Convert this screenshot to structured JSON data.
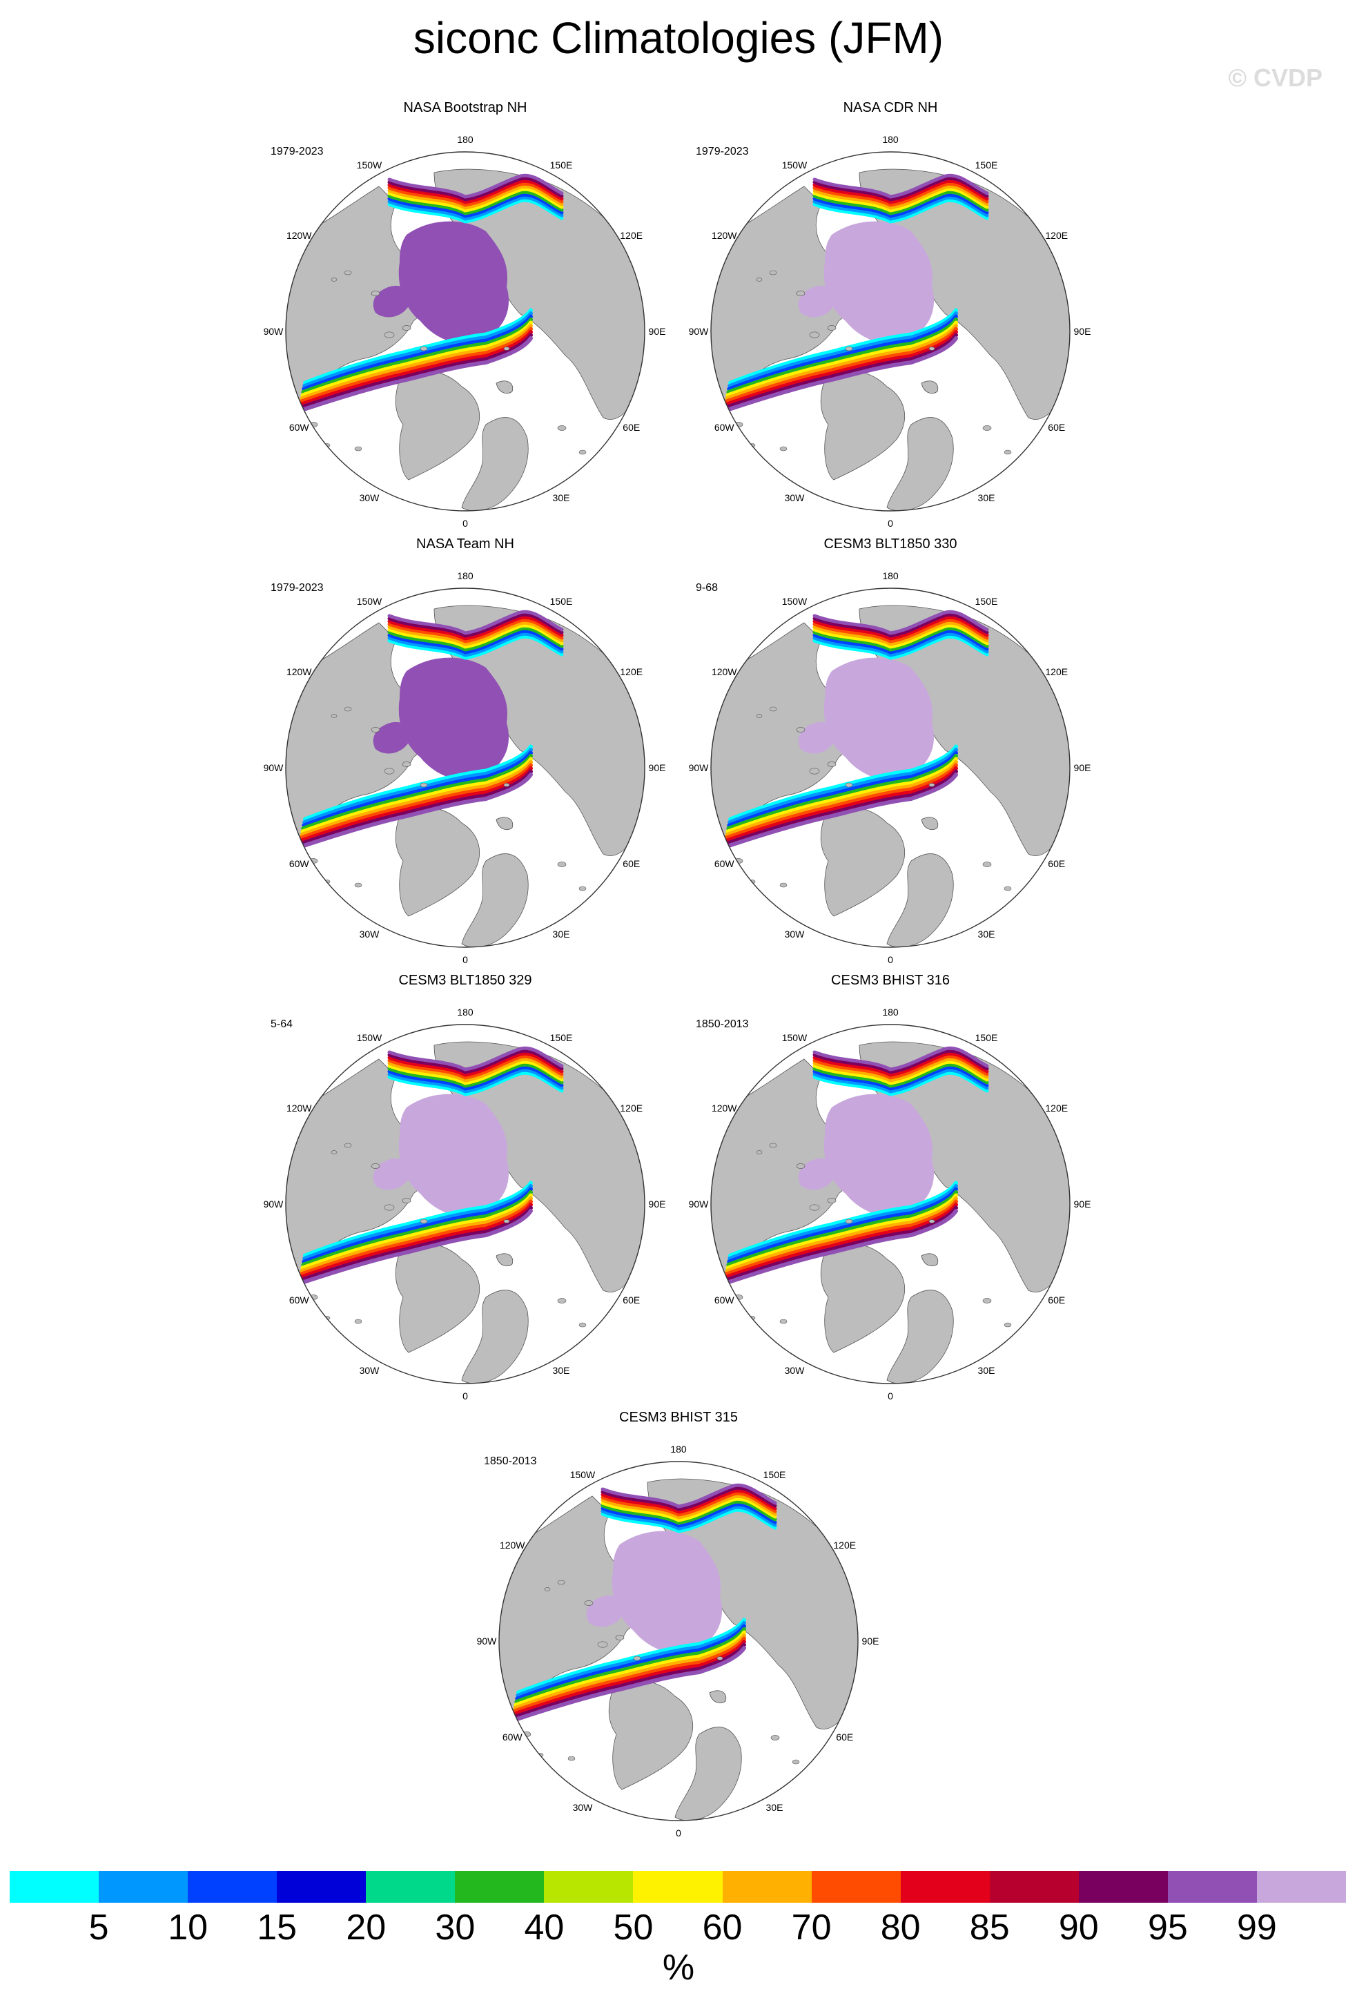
{
  "title": "siconc Climatologies (JFM)",
  "watermark": "© CVDP",
  "longitude_labels": [
    "180",
    "150E",
    "120E",
    "90E",
    "60E",
    "30E",
    "0",
    "30W",
    "60W",
    "90W",
    "120W",
    "150W"
  ],
  "colors": {
    "land": "#bdbdbd",
    "ocean": "#ffffff",
    "outline": "#555555"
  },
  "colorbar": {
    "labels": [
      "5",
      "10",
      "15",
      "20",
      "30",
      "40",
      "50",
      "60",
      "70",
      "80",
      "85",
      "90",
      "95",
      "99"
    ],
    "colors": [
      "#00ffff",
      "#0097ff",
      "#0040ff",
      "#0000d8",
      "#00d88a",
      "#22b81e",
      "#b8e600",
      "#fff200",
      "#ffb000",
      "#ff4c00",
      "#e2001a",
      "#b8002e",
      "#7a0060",
      "#9050b4",
      "#c8a8dc"
    ],
    "unit": "%"
  },
  "panels": [
    {
      "title": "NASA Bootstrap NH",
      "period": "1979-2023",
      "interior": "#9050b4"
    },
    {
      "title": "NASA CDR NH",
      "period": "1979-2023",
      "interior": "#c8a8dc"
    },
    {
      "title": "NASA Team NH",
      "period": "1979-2023",
      "interior": "#9050b4"
    },
    {
      "title": "CESM3 BLT1850 330",
      "period": "9-68",
      "interior": "#c8a8dc"
    },
    {
      "title": "CESM3 BLT1850 329",
      "period": "5-64",
      "interior": "#c8a8dc"
    },
    {
      "title": "CESM3 BHIST 316",
      "period": "1850-2013",
      "interior": "#c8a8dc"
    },
    {
      "title": "CESM3 BHIST 315",
      "period": "1850-2013",
      "interior": "#c8a8dc"
    }
  ]
}
